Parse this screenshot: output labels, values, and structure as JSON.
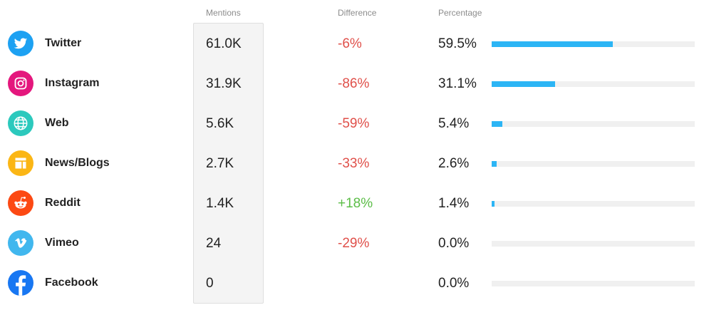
{
  "headers": {
    "mentions": "Mentions",
    "difference": "Difference",
    "percentage": "Percentage"
  },
  "rows": [
    {
      "name": "Twitter",
      "icon": "twitter-icon",
      "color": "#1da1f2",
      "mentions": "61.0K",
      "difference": "-6%",
      "percentage_label": "59.5%",
      "percentage": 59.5
    },
    {
      "name": "Instagram",
      "icon": "instagram-icon",
      "color": "#e4177d",
      "mentions": "31.9K",
      "difference": "-86%",
      "percentage_label": "31.1%",
      "percentage": 31.1
    },
    {
      "name": "Web",
      "icon": "globe-icon",
      "color": "#2cc9bd",
      "mentions": "5.6K",
      "difference": "-59%",
      "percentage_label": "5.4%",
      "percentage": 5.4
    },
    {
      "name": "News/Blogs",
      "icon": "news-icon",
      "color": "#fbb615",
      "mentions": "2.7K",
      "difference": "-33%",
      "percentage_label": "2.6%",
      "percentage": 2.6
    },
    {
      "name": "Reddit",
      "icon": "reddit-icon",
      "color": "#fc4913",
      "mentions": "1.4K",
      "difference": "+18%",
      "percentage_label": "1.4%",
      "percentage": 1.4
    },
    {
      "name": "Vimeo",
      "icon": "vimeo-icon",
      "color": "#41b7ee",
      "mentions": "24",
      "difference": "-29%",
      "percentage_label": "0.0%",
      "percentage": 0.0
    },
    {
      "name": "Facebook",
      "icon": "facebook-icon",
      "color": "#1877f2",
      "mentions": "0",
      "difference": "",
      "percentage_label": "0.0%",
      "percentage": 0.0
    }
  ],
  "colors": {
    "bar": "#2cb5f5",
    "negative": "#e0504a",
    "positive": "#5bbd47"
  }
}
